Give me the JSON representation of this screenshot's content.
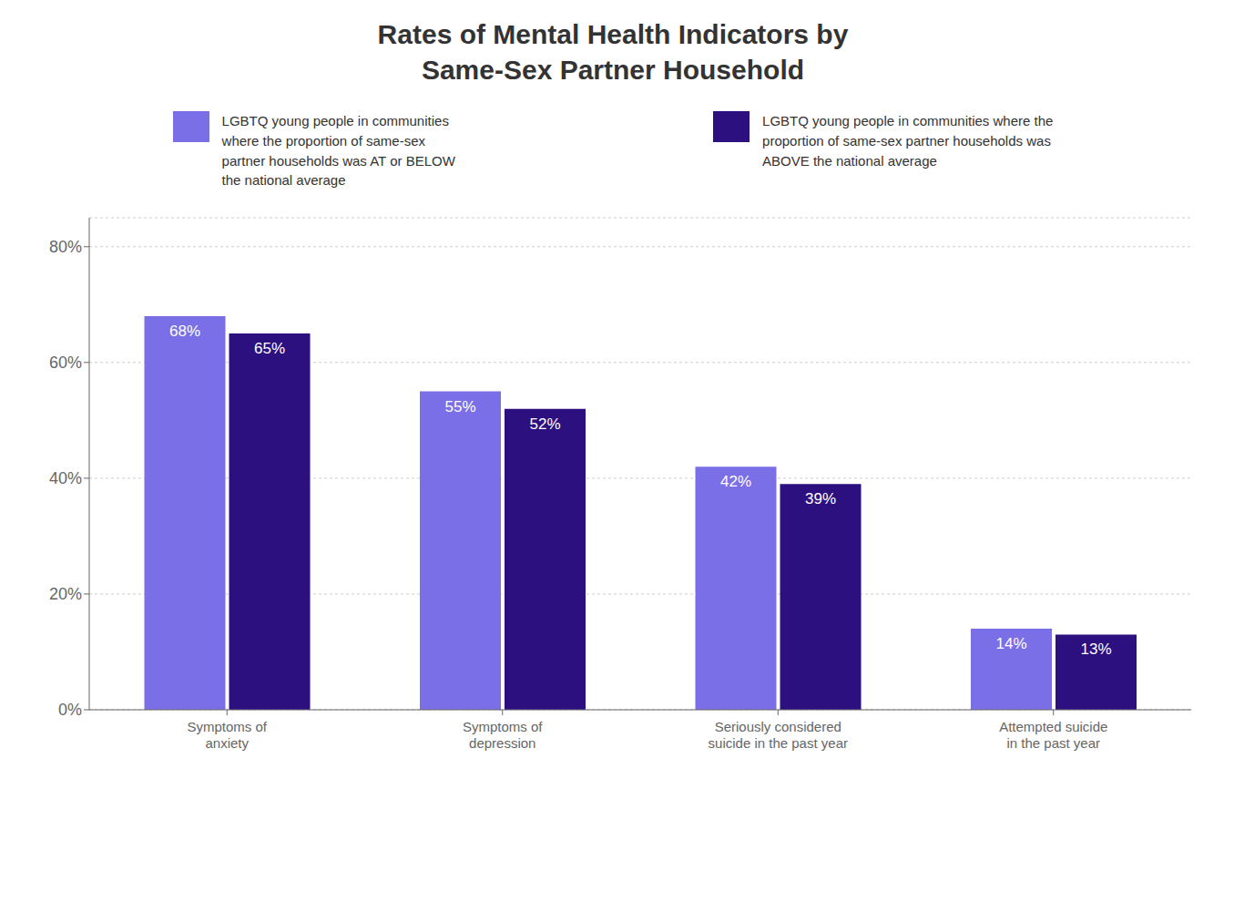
{
  "chart_data": {
    "type": "bar",
    "title": "Rates of Mental Health Indicators by\nSame-Sex Partner Household",
    "categories": [
      "Symptoms of\nanxiety",
      "Symptoms of\ndepression",
      "Seriously considered\nsuicide in the past year",
      "Attempted suicide\nin the past year"
    ],
    "series": [
      {
        "name": "LGBTQ young people in communities\nwhere the proportion of same-sex\npartner households was AT or BELOW\nthe national average",
        "color": "#7b6fe8",
        "values": [
          68,
          55,
          42,
          14
        ],
        "value_labels": [
          "68%",
          "55%",
          "42%",
          "14%"
        ]
      },
      {
        "name": "LGBTQ young people in communities where the\nproportion of same-sex partner households was\nABOVE the national average",
        "color": "#2d1080",
        "values": [
          65,
          52,
          39,
          13
        ],
        "value_labels": [
          "65%",
          "52%",
          "39%",
          "13%"
        ]
      }
    ],
    "ylim": [
      0,
      85
    ],
    "yticks": [
      {
        "value": 0,
        "label": "0%"
      },
      {
        "value": 20,
        "label": "20%"
      },
      {
        "value": 40,
        "label": "40%"
      },
      {
        "value": 60,
        "label": "60%"
      },
      {
        "value": 80,
        "label": "80%"
      }
    ],
    "grid": true,
    "legend": "top",
    "data_labels": true
  }
}
